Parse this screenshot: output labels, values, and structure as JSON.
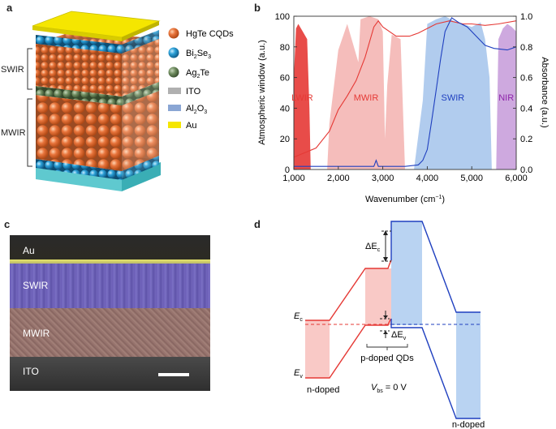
{
  "panels": {
    "a": "a",
    "b": "b",
    "c": "c",
    "d": "d"
  },
  "panel_a": {
    "side_labels": {
      "swir": "SWIR",
      "mwir": "MWIR"
    },
    "legend": [
      {
        "key": "hgte",
        "text": "HgTe CQDs",
        "color": "#e8743b"
      },
      {
        "key": "bi2se3",
        "text": "Bi",
        "sub1": "2",
        "mid": "Se",
        "sub2": "3",
        "color": "#2a9fd6"
      },
      {
        "key": "ag2te",
        "text": "Ag",
        "sub1": "2",
        "mid": "Te",
        "sub2": "",
        "color": "#6e8b5e"
      },
      {
        "key": "ito",
        "text": "ITO",
        "color": "#b0b0b0"
      },
      {
        "key": "al2o3",
        "text": "Al",
        "sub1": "2",
        "mid": "O",
        "sub2": "3",
        "color": "#8aa6d4"
      },
      {
        "key": "au",
        "text": "Au",
        "color": "#f5e600"
      }
    ]
  },
  "chart_data": {
    "type": "line",
    "xlabel": "Wavenumber (cm",
    "xlabel_sup": "−1",
    "xlabel_end": ")",
    "ylabel_left": "Atmospheric window (a.u.)",
    "ylabel_right": "Absorbance (a.u.)",
    "xlim": [
      1000,
      6000
    ],
    "ylim_left": [
      0,
      100
    ],
    "ylim_right": [
      0,
      1.0
    ],
    "x_ticks": [
      1000,
      2000,
      3000,
      4000,
      5000,
      6000
    ],
    "x_tick_labels": [
      "1,000",
      "2,000",
      "3,000",
      "4,000",
      "5,000",
      "6,000"
    ],
    "y_left_ticks": [
      0,
      20,
      40,
      60,
      80,
      100
    ],
    "y_right_ticks": [
      0,
      0.2,
      0.4,
      0.6,
      0.8,
      1.0
    ],
    "y_right_tick_labels": [
      "0.0",
      "0.2",
      "0.4",
      "0.6",
      "0.8",
      "1.0"
    ],
    "bands": [
      {
        "name": "LWIR",
        "color": "#e53935",
        "label_color": "#e53935",
        "x": [
          1000,
          1050,
          1100,
          1200,
          1300,
          1350,
          1380
        ],
        "y": [
          60,
          92,
          95,
          90,
          85,
          40,
          0
        ]
      },
      {
        "name": "MWIR",
        "color": "#f4b6b4",
        "label_color": "#e53935",
        "x": [
          1750,
          1800,
          2000,
          2200,
          2450,
          2500,
          2700,
          2900,
          3000,
          3050,
          3100,
          3200,
          3400,
          3500
        ],
        "y": [
          0,
          30,
          78,
          95,
          70,
          98,
          100,
          98,
          90,
          20,
          55,
          88,
          85,
          0
        ]
      },
      {
        "name": "SWIR",
        "color": "#a9c6ec",
        "label_color": "#1f3fbf",
        "x": [
          3700,
          3900,
          4000,
          4200,
          4400,
          4600,
          4800,
          5000,
          5200,
          5300,
          5400,
          5450
        ],
        "y": [
          0,
          45,
          95,
          98,
          100,
          97,
          95,
          93,
          96,
          85,
          60,
          0
        ]
      },
      {
        "name": "NIR",
        "color": "#c9a0dc",
        "label_color": "#8e24aa",
        "x": [
          5550,
          5600,
          5700,
          5800,
          5900,
          6000
        ],
        "y": [
          0,
          85,
          92,
          95,
          93,
          90
        ]
      }
    ],
    "series": [
      {
        "name": "MWIR absorbance",
        "color": "#e53935",
        "axis": "right",
        "x": [
          1000,
          1500,
          1800,
          2000,
          2200,
          2400,
          2600,
          2800,
          2900,
          3000,
          3300,
          3600,
          3800,
          4000,
          4200,
          4500,
          4800,
          5000,
          5300,
          5600,
          6000
        ],
        "y": [
          0.08,
          0.14,
          0.25,
          0.39,
          0.48,
          0.58,
          0.73,
          0.93,
          0.97,
          0.93,
          0.87,
          0.87,
          0.89,
          0.92,
          0.95,
          0.97,
          0.95,
          0.95,
          0.94,
          0.95,
          0.97
        ]
      },
      {
        "name": "SWIR absorbance",
        "color": "#1f3fbf",
        "axis": "right",
        "x": [
          1000,
          1800,
          2800,
          2850,
          2900,
          3500,
          3800,
          3900,
          4000,
          4100,
          4200,
          4300,
          4400,
          4550,
          4700,
          4900,
          5100,
          5300,
          5500,
          5800,
          6000
        ],
        "y": [
          0.02,
          0.02,
          0.02,
          0.06,
          0.02,
          0.02,
          0.03,
          0.06,
          0.13,
          0.32,
          0.52,
          0.72,
          0.9,
          0.99,
          0.96,
          0.93,
          0.87,
          0.81,
          0.79,
          0.78,
          0.8
        ]
      }
    ]
  },
  "panel_c": {
    "layers": [
      {
        "key": "au",
        "text": "Au",
        "color": "#2b2a1e"
      },
      {
        "key": "swir",
        "text": "SWIR",
        "color": "#6b5fb8"
      },
      {
        "key": "mwir",
        "text": "MWIR",
        "color": "#94716a"
      },
      {
        "key": "ito",
        "text": "ITO",
        "color": "#3c3c3c"
      }
    ]
  },
  "panel_d": {
    "ec": "E",
    "ec_sub": "c",
    "ev": "E",
    "ev_sub": "v",
    "delta_ec": "ΔE",
    "delta_ec_sub": "c",
    "delta_ev": "ΔE",
    "delta_ev_sub": "v",
    "n_doped_left": "n-doped",
    "p_doped": "p-doped QDs",
    "vbs": "V",
    "vbs_sub": "bs",
    "vbs_value": " = 0 V",
    "n_doped_right": "n-doped",
    "red_color": "#e53935",
    "blue_color": "#1f3fbf"
  }
}
